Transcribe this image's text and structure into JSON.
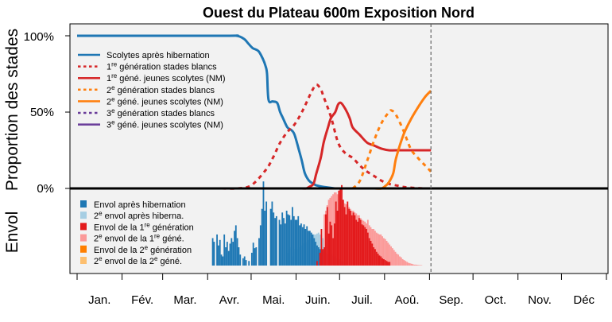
{
  "chart_data": {
    "type": "line",
    "title": "Ouest du Plateau 600m Exposition Nord",
    "ylabel_top": "Proportion des stades",
    "ylabel_bottom": "Envol",
    "y_ticks": [
      "100%",
      "50%",
      "0%"
    ],
    "months": [
      "Jan.",
      "Fév.",
      "Mar.",
      "Avr.",
      "Mai.",
      "Juin.",
      "Juil.",
      "Aoû.",
      "Sep.",
      "Oct.",
      "Nov.",
      "Déc"
    ],
    "x_unit": "day of year",
    "xlim": [
      0,
      365
    ],
    "ylim_top": [
      0,
      1.05
    ],
    "current_day": 244,
    "grid": false,
    "legend_top": [
      {
        "pre": "Scolytes après hibernation",
        "sup": "",
        "post": "",
        "color": "#1f77b4",
        "dash": "solid"
      },
      {
        "pre": "1",
        "sup": "re",
        "post": " génération stades blancs",
        "color": "#d62728",
        "dash": "dotted"
      },
      {
        "pre": "1",
        "sup": "re",
        "post": " géné. jeunes scolytes (NM)",
        "color": "#d62728",
        "dash": "solid"
      },
      {
        "pre": "2",
        "sup": "e",
        "post": " génération stades blancs",
        "color": "#ff7f0e",
        "dash": "dotted"
      },
      {
        "pre": "2",
        "sup": "e",
        "post": " géné. jeunes scolytes (NM)",
        "color": "#ff7f0e",
        "dash": "solid"
      },
      {
        "pre": "3",
        "sup": "e",
        "post": " génération stades blancs",
        "color": "#6a3d9a",
        "dash": "dotted"
      },
      {
        "pre": "3",
        "sup": "e",
        "post": " géné. jeunes scolytes (NM)",
        "color": "#6a3d9a",
        "dash": "solid"
      }
    ],
    "legend_bottom": [
      {
        "pre": "Envol après hibernation",
        "sup": "",
        "post": "",
        "color": "#1f78b4"
      },
      {
        "pre": "2",
        "sup": "e",
        "post": " envol après hiberna.",
        "color": "#a6cee3"
      },
      {
        "pre": "Envol de la 1",
        "sup": "re",
        "post": " génération",
        "color": "#e31a1c"
      },
      {
        "pre": "2",
        "sup": "e",
        "post": " envol de la 1",
        "sup2": "re",
        "post2": " géné.",
        "color": "#fb9a99"
      },
      {
        "pre": "Envol de la 2",
        "sup": "e",
        "post": " génération",
        "color": "#ff7f00"
      },
      {
        "pre": "2",
        "sup": "e",
        "post": " envol de la 2",
        "sup2": "e",
        "post2": " géné.",
        "color": "#fdbf6f"
      }
    ],
    "series": [
      {
        "name": "Scolytes après hibernation",
        "color": "#1f77b4",
        "dash": "solid",
        "x": [
          0,
          100,
          110,
          115,
          118,
          121,
          125,
          128,
          130,
          131,
          132,
          135,
          138,
          140,
          142,
          145,
          148,
          150,
          153,
          155,
          157,
          160,
          163,
          165,
          170,
          178
        ],
        "y": [
          1.0,
          1.0,
          1.0,
          0.98,
          0.95,
          0.92,
          0.9,
          0.85,
          0.8,
          0.75,
          0.58,
          0.57,
          0.56,
          0.5,
          0.46,
          0.4,
          0.38,
          0.35,
          0.25,
          0.18,
          0.1,
          0.05,
          0.03,
          0.02,
          0.01,
          0.0
        ]
      },
      {
        "name": "1re génération stades blancs",
        "color": "#d62728",
        "dash": "dotted",
        "x": [
          100,
          110,
          120,
          130,
          135,
          140,
          145,
          150,
          155,
          160,
          162,
          165,
          168,
          170,
          175,
          180,
          185,
          190,
          195,
          200,
          205,
          210,
          215,
          220,
          225,
          230,
          235,
          240,
          244
        ],
        "y": [
          0.0,
          0.0,
          0.02,
          0.12,
          0.2,
          0.3,
          0.37,
          0.42,
          0.5,
          0.6,
          0.64,
          0.68,
          0.65,
          0.6,
          0.47,
          0.3,
          0.23,
          0.2,
          0.15,
          0.11,
          0.08,
          0.05,
          0.03,
          0.02,
          0.01,
          0.005,
          0.002,
          0.0,
          0.0
        ]
      },
      {
        "name": "1re géné. jeunes scolytes (NM)",
        "color": "#d62728",
        "dash": "solid",
        "x": [
          150,
          155,
          158,
          160,
          163,
          165,
          168,
          170,
          173,
          175,
          178,
          180,
          182,
          185,
          188,
          190,
          195,
          200,
          205,
          210,
          215,
          220,
          230,
          244
        ],
        "y": [
          0.0,
          0.0,
          0.0,
          0.01,
          0.03,
          0.1,
          0.2,
          0.3,
          0.4,
          0.46,
          0.5,
          0.55,
          0.56,
          0.52,
          0.46,
          0.4,
          0.35,
          0.3,
          0.28,
          0.26,
          0.25,
          0.25,
          0.25,
          0.25
        ]
      },
      {
        "name": "2e génération stades blancs",
        "color": "#ff7f0e",
        "dash": "dotted",
        "x": [
          190,
          195,
          200,
          205,
          210,
          215,
          217,
          220,
          225,
          230,
          235,
          240,
          244
        ],
        "y": [
          0.0,
          0.05,
          0.18,
          0.32,
          0.43,
          0.5,
          0.51,
          0.48,
          0.38,
          0.26,
          0.2,
          0.15,
          0.11
        ]
      },
      {
        "name": "2e géné. jeunes scolytes (NM)",
        "color": "#ff7f0e",
        "dash": "solid",
        "x": [
          205,
          210,
          213,
          215,
          218,
          220,
          225,
          230,
          235,
          240,
          244
        ],
        "y": [
          0.0,
          0.0,
          0.02,
          0.04,
          0.1,
          0.2,
          0.35,
          0.45,
          0.53,
          0.6,
          0.64
        ]
      },
      {
        "name": "3e génération stades blancs",
        "color": "#6a3d9a",
        "dash": "dotted",
        "x": [
          0,
          365
        ],
        "y": [
          0.0,
          0.0
        ]
      },
      {
        "name": "3e géné. jeunes scolytes (NM)",
        "color": "#6a3d9a",
        "dash": "solid",
        "x": [
          0,
          365
        ],
        "y": [
          0.0,
          0.0
        ]
      }
    ]
  }
}
